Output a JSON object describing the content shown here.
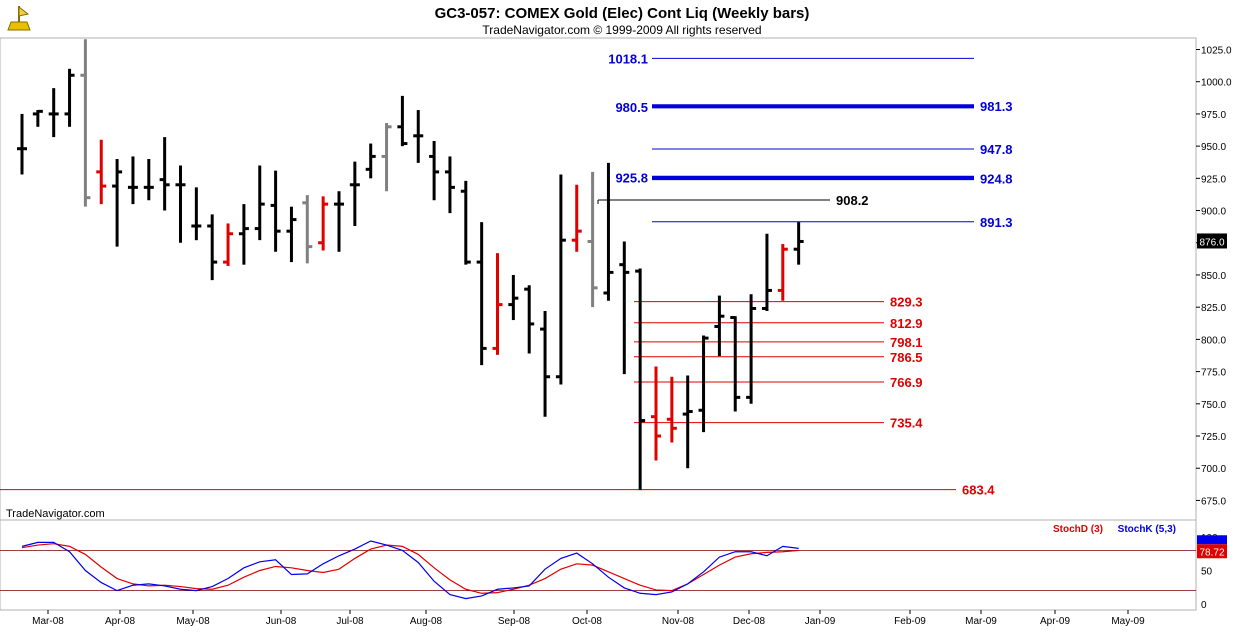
{
  "header": {
    "title": "GC3-057:  COMEX Gold (Elec) Cont Liq  (Weekly bars)",
    "subtitle": "TradeNavigator.com © 1999-2009 All rights reserved",
    "watermark": "TradeNavigator.com"
  },
  "colors": {
    "up": "#000000",
    "down": "#e00000",
    "neutral": "#808080",
    "blue_levels": "#0000dd",
    "red_levels": "#e00000",
    "stoch_d": "#e00000",
    "stoch_k": "#0000ee",
    "grid": "#c0c0c0"
  },
  "chart_data": [
    {
      "type": "ohlc",
      "title": "GC3-057:  COMEX Gold (Elec) Cont Liq  (Weekly bars)",
      "ylim": [
        660,
        1040
      ],
      "y_ticks": [
        675.0,
        700.0,
        725.0,
        750.0,
        775.0,
        800.0,
        825.0,
        850.0,
        875.0,
        900.0,
        925.0,
        950.0,
        975.0,
        1000.0,
        1025.0
      ],
      "x_tick_labels": [
        "Mar-08",
        "Apr-08",
        "May-08",
        "Jun-08",
        "Jul-08",
        "Aug-08",
        "Sep-08",
        "Oct-08",
        "Nov-08",
        "Dec-08",
        "Jan-09",
        "Feb-09",
        "Mar-09",
        "Apr-09",
        "May-09"
      ],
      "last_price": "876.0",
      "bars": [
        {
          "o": 948,
          "h": 975,
          "l": 928,
          "c": 948,
          "col": "up"
        },
        {
          "o": 975,
          "h": 978,
          "l": 965,
          "c": 977,
          "col": "up"
        },
        {
          "o": 975,
          "h": 995,
          "l": 957,
          "c": 975,
          "col": "up"
        },
        {
          "o": 975,
          "h": 1010,
          "l": 965,
          "c": 1005,
          "col": "up"
        },
        {
          "o": 1005,
          "h": 1033,
          "l": 903,
          "c": 910,
          "col": "neutral"
        },
        {
          "o": 930,
          "h": 955,
          "l": 905,
          "c": 919,
          "col": "down"
        },
        {
          "o": 919,
          "h": 940,
          "l": 872,
          "c": 930,
          "col": "up"
        },
        {
          "o": 918,
          "h": 942,
          "l": 905,
          "c": 918,
          "col": "up"
        },
        {
          "o": 918,
          "h": 940,
          "l": 908,
          "c": 918,
          "col": "up"
        },
        {
          "o": 924,
          "h": 957,
          "l": 900,
          "c": 920,
          "col": "up"
        },
        {
          "o": 920,
          "h": 935,
          "l": 875,
          "c": 920,
          "col": "up"
        },
        {
          "o": 888,
          "h": 918,
          "l": 877,
          "c": 888,
          "col": "up"
        },
        {
          "o": 888,
          "h": 897,
          "l": 846,
          "c": 860,
          "col": "up"
        },
        {
          "o": 860,
          "h": 890,
          "l": 857,
          "c": 882,
          "col": "down"
        },
        {
          "o": 882,
          "h": 905,
          "l": 858,
          "c": 886,
          "col": "up"
        },
        {
          "o": 886,
          "h": 935,
          "l": 877,
          "c": 905,
          "col": "up"
        },
        {
          "o": 904,
          "h": 931,
          "l": 868,
          "c": 884,
          "col": "up"
        },
        {
          "o": 884,
          "h": 903,
          "l": 860,
          "c": 893,
          "col": "up"
        },
        {
          "o": 906,
          "h": 912,
          "l": 859,
          "c": 872,
          "col": "neutral"
        },
        {
          "o": 875,
          "h": 911,
          "l": 869,
          "c": 905,
          "col": "down"
        },
        {
          "o": 905,
          "h": 915,
          "l": 868,
          "c": 905,
          "col": "up"
        },
        {
          "o": 920,
          "h": 938,
          "l": 888,
          "c": 920,
          "col": "up"
        },
        {
          "o": 932,
          "h": 952,
          "l": 925,
          "c": 942,
          "col": "up"
        },
        {
          "o": 942,
          "h": 968,
          "l": 915,
          "c": 965,
          "col": "neutral"
        },
        {
          "o": 965,
          "h": 989,
          "l": 950,
          "c": 952,
          "col": "up"
        },
        {
          "o": 958,
          "h": 978,
          "l": 937,
          "c": 958,
          "col": "up"
        },
        {
          "o": 942,
          "h": 954,
          "l": 908,
          "c": 930,
          "col": "up"
        },
        {
          "o": 930,
          "h": 942,
          "l": 898,
          "c": 918,
          "col": "up"
        },
        {
          "o": 915,
          "h": 923,
          "l": 858,
          "c": 860,
          "col": "up"
        },
        {
          "o": 860,
          "h": 891,
          "l": 780,
          "c": 793,
          "col": "up"
        },
        {
          "o": 793,
          "h": 867,
          "l": 788,
          "c": 827,
          "col": "down"
        },
        {
          "o": 827,
          "h": 850,
          "l": 815,
          "c": 832,
          "col": "up"
        },
        {
          "o": 839,
          "h": 842,
          "l": 789,
          "c": 812,
          "col": "up"
        },
        {
          "o": 808,
          "h": 822,
          "l": 740,
          "c": 771,
          "col": "up"
        },
        {
          "o": 771,
          "h": 928,
          "l": 765,
          "c": 877,
          "col": "up"
        },
        {
          "o": 877,
          "h": 920,
          "l": 868,
          "c": 884,
          "col": "down"
        },
        {
          "o": 876,
          "h": 930,
          "l": 825,
          "c": 840,
          "col": "neutral"
        },
        {
          "o": 836,
          "h": 937,
          "l": 830,
          "c": 852,
          "col": "up"
        },
        {
          "o": 858,
          "h": 876,
          "l": 773,
          "c": 852,
          "col": "up"
        },
        {
          "o": 853,
          "h": 855,
          "l": 683,
          "c": 737,
          "col": "up"
        },
        {
          "o": 740,
          "h": 779,
          "l": 706,
          "c": 725,
          "col": "down"
        },
        {
          "o": 738,
          "h": 771,
          "l": 720,
          "c": 731,
          "col": "down"
        },
        {
          "o": 742,
          "h": 772,
          "l": 700,
          "c": 744,
          "col": "up"
        },
        {
          "o": 745,
          "h": 803,
          "l": 728,
          "c": 801,
          "col": "up"
        },
        {
          "o": 810,
          "h": 834,
          "l": 787,
          "c": 818,
          "col": "up"
        },
        {
          "o": 817,
          "h": 818,
          "l": 744,
          "c": 755,
          "col": "up"
        },
        {
          "o": 755,
          "h": 835,
          "l": 750,
          "c": 824,
          "col": "up"
        },
        {
          "o": 824,
          "h": 882,
          "l": 822,
          "c": 838,
          "col": "up"
        },
        {
          "o": 838,
          "h": 874,
          "l": 830,
          "c": 870,
          "col": "down"
        },
        {
          "o": 870,
          "h": 891,
          "l": 858,
          "c": 876,
          "col": "up"
        }
      ],
      "levels": [
        {
          "value": 1018.1,
          "label": "1018.1",
          "label_side": "left",
          "color": "blue_levels"
        },
        {
          "value": 980.5,
          "label": "980.5",
          "label_side": "left",
          "color": "blue_levels"
        },
        {
          "value": 981.3,
          "label": "981.3",
          "label_side": "right",
          "color": "blue_levels"
        },
        {
          "value": 947.8,
          "label": "947.8",
          "label_side": "right",
          "color": "blue_levels"
        },
        {
          "value": 925.8,
          "label": "925.8",
          "label_side": "left",
          "color": "blue_levels"
        },
        {
          "value": 924.8,
          "label": "924.8",
          "label_side": "right",
          "color": "blue_levels"
        },
        {
          "value": 908.2,
          "label": "908.2",
          "label_side": "right",
          "color": "up"
        },
        {
          "value": 891.3,
          "label": "891.3",
          "label_side": "right",
          "color": "blue_levels"
        },
        {
          "value": 829.3,
          "label": "829.3",
          "label_side": "right",
          "color": "red_levels"
        },
        {
          "value": 812.9,
          "label": "812.9",
          "label_side": "right",
          "color": "red_levels"
        },
        {
          "value": 798.1,
          "label": "798.1",
          "label_side": "right",
          "color": "red_levels"
        },
        {
          "value": 786.5,
          "label": "786.5",
          "label_side": "right",
          "color": "red_levels"
        },
        {
          "value": 766.9,
          "label": "766.9",
          "label_side": "right",
          "color": "red_levels"
        },
        {
          "value": 735.4,
          "label": "735.4",
          "label_side": "right",
          "color": "red_levels"
        },
        {
          "value": 683.4,
          "label": "683.4",
          "label_side": "right",
          "color": "red_levels"
        }
      ]
    },
    {
      "type": "line",
      "title": "",
      "ylim": [
        -5,
        110
      ],
      "y_ticks": [
        0,
        50,
        100
      ],
      "reference_lines": [
        20,
        80
      ],
      "last_value": "78.72",
      "series": [
        {
          "name": "StochD (3)",
          "color": "stoch_d",
          "values": [
            84,
            88,
            90,
            86,
            74,
            55,
            38,
            30,
            27,
            28,
            26,
            23,
            22,
            28,
            40,
            50,
            56,
            54,
            50,
            47,
            52,
            68,
            82,
            88,
            86,
            74,
            54,
            36,
            22,
            16,
            17,
            22,
            28,
            38,
            52,
            60,
            58,
            48,
            38,
            28,
            21,
            20,
            30,
            44,
            58,
            70,
            75,
            77,
            78,
            80
          ]
        },
        {
          "name": "StochK (5,3)",
          "color": "stoch_k",
          "values": [
            86,
            92,
            92,
            78,
            50,
            32,
            20,
            28,
            30,
            27,
            22,
            20,
            26,
            38,
            54,
            63,
            66,
            44,
            45,
            60,
            72,
            82,
            94,
            88,
            80,
            62,
            34,
            14,
            8,
            12,
            22,
            24,
            27,
            52,
            68,
            76,
            60,
            40,
            24,
            16,
            14,
            18,
            30,
            48,
            70,
            78,
            78,
            72,
            86,
            83
          ]
        }
      ]
    }
  ],
  "stoch_labels": {
    "d": "StochD (3)",
    "k": "StochK (5,3)"
  }
}
